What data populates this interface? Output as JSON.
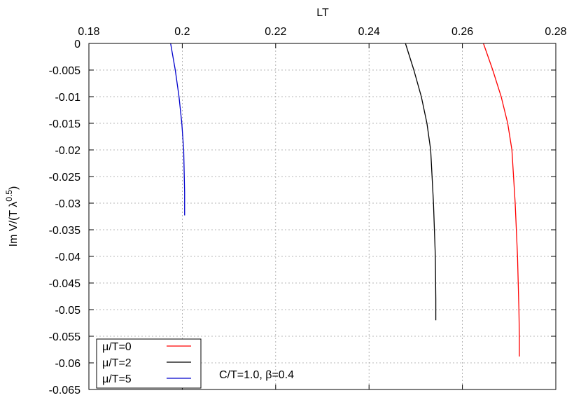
{
  "chart_data": {
    "type": "line",
    "xlabel": "LT",
    "ylabel_main": "Im V/(T λ",
    "ylabel_sup": "0.5",
    "ylabel_close": ")",
    "xlim": [
      0.18,
      0.28
    ],
    "ylim": [
      -0.065,
      0
    ],
    "x_axis_position": "top",
    "x_ticks": [
      0.18,
      0.2,
      0.22,
      0.24,
      0.26,
      0.28
    ],
    "x_tick_labels": [
      "0.18",
      "0.2",
      "0.22",
      "0.24",
      "0.26",
      "0.28"
    ],
    "y_ticks": [
      0,
      -0.005,
      -0.01,
      -0.015,
      -0.02,
      -0.025,
      -0.03,
      -0.035,
      -0.04,
      -0.045,
      -0.05,
      -0.055,
      -0.06,
      -0.065
    ],
    "y_tick_labels": [
      "0",
      "-0.005",
      "-0.01",
      "-0.015",
      "-0.02",
      "-0.025",
      "-0.03",
      "-0.035",
      "-0.04",
      "-0.045",
      "-0.05",
      "-0.055",
      "-0.06",
      "-0.065"
    ],
    "grid": true,
    "legend_position": "bottom-left",
    "annotation": "C/T=1.0, β=0.4",
    "series": [
      {
        "name": "μ/T=0",
        "color": "#ff0000",
        "x": [
          0.2645,
          0.2665,
          0.2683,
          0.2697,
          0.2706,
          0.2713,
          0.2718,
          0.2721,
          0.2722,
          0.2722
        ],
        "y": [
          0,
          -0.005,
          -0.01,
          -0.015,
          -0.02,
          -0.03,
          -0.04,
          -0.05,
          -0.055,
          -0.0588
        ]
      },
      {
        "name": "μ/T=2",
        "color": "#000000",
        "x": [
          0.2478,
          0.2496,
          0.2512,
          0.2524,
          0.2532,
          0.2538,
          0.2542,
          0.2543,
          0.2543
        ],
        "y": [
          0,
          -0.005,
          -0.01,
          -0.015,
          -0.02,
          -0.03,
          -0.04,
          -0.048,
          -0.052
        ]
      },
      {
        "name": "μ/T=5",
        "color": "#0000cc",
        "x": [
          0.1975,
          0.1985,
          0.1993,
          0.1999,
          0.2003,
          0.2005,
          0.2005
        ],
        "y": [
          0,
          -0.005,
          -0.01,
          -0.015,
          -0.02,
          -0.028,
          -0.0323
        ]
      }
    ]
  }
}
